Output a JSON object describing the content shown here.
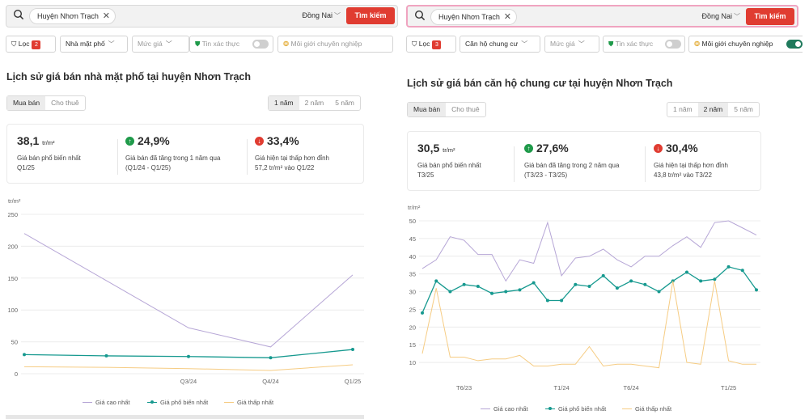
{
  "colors": {
    "accent": "#e03c31",
    "max": "#b6a6d6",
    "common": "#16998f",
    "min": "#f6cc83",
    "grid": "#ececec"
  },
  "left": {
    "search": {
      "chip": "Huyện Nhơn Trạch",
      "province": "Đồng Nai",
      "button": "Tìm kiếm"
    },
    "filters": {
      "loc": "Lọc",
      "loc_count": "2",
      "type": "Nhà mặt phố",
      "price": "Mức giá",
      "verified": "Tin xác thực",
      "broker": "Môi giới chuyên nghiệp"
    },
    "title": "Lịch sử giá bán nhà mặt phố tại huyện Nhơn Trạch",
    "tabs": [
      "Mua bán",
      "Cho thuê"
    ],
    "periods": [
      "1 năm",
      "2 năm",
      "5 năm"
    ],
    "active_period": 0,
    "stats": {
      "s1_value": "38,1",
      "unit": "tr/m²",
      "s1_desc": "Giá bán phổ biến nhất",
      "s1_sub": "Q1/25",
      "s2_value": "24,9%",
      "s2_desc": "Giá bán đã tăng trong 1 năm qua",
      "s2_sub": "(Q1/24 - Q1/25)",
      "s3_value": "33,4%",
      "s3_desc": "Giá hiện tại thấp hơn đỉnh",
      "s3_sub": "57,2 tr/m² vào Q1/22"
    },
    "legend": {
      "max": "Giá cao nhất",
      "common": "Giá phổ biến nhất",
      "min": "Giá thấp nhất"
    }
  },
  "right": {
    "search": {
      "chip": "Huyện Nhơn Trạch",
      "province": "Đồng Nai",
      "button": "Tìm kiếm"
    },
    "filters": {
      "loc": "Lọc",
      "loc_count": "3",
      "type": "Căn hộ chung cư",
      "price": "Mức giá",
      "verified": "Tin xác thực",
      "broker": "Môi giới chuyên nghiệp"
    },
    "title": "Lịch sử giá bán căn hộ chung cư tại huyện Nhơn Trạch",
    "tabs": [
      "Mua bán",
      "Cho thuê"
    ],
    "periods": [
      "1 năm",
      "2 năm",
      "5 năm"
    ],
    "active_period": 1,
    "stats": {
      "s1_value": "30,5",
      "unit": "tr/m²",
      "s1_desc": "Giá bán phổ biến nhất",
      "s1_sub": "T3/25",
      "s2_value": "27,6%",
      "s2_desc": "Giá bán đã tăng trong 2 năm qua",
      "s2_sub": "(T3/23 - T3/25)",
      "s3_value": "30,4%",
      "s3_desc": "Giá hiện tại thấp hơn đỉnh",
      "s3_sub": "43,8 tr/m² vào T3/22"
    },
    "legend": {
      "max": "Giá cao nhất",
      "common": "Giá phổ biến nhất",
      "min": "Giá thấp nhất"
    }
  },
  "chart_data": [
    {
      "type": "line",
      "ylabel": "tr/m²",
      "ylim": [
        0,
        250
      ],
      "yticks": [
        0,
        50,
        100,
        150,
        200,
        250
      ],
      "x": [
        "Q1/24",
        "Q2/24",
        "Q3/24",
        "Q4/24",
        "Q1/25"
      ],
      "x_tick_labels": [
        "",
        "",
        "Q3/24",
        "Q4/24",
        "Q1/25"
      ],
      "series": [
        {
          "name": "Giá cao nhất",
          "values": [
            220,
            146,
            72,
            42,
            155
          ]
        },
        {
          "name": "Giá phổ biến nhất",
          "values": [
            30,
            28,
            27,
            25,
            38
          ]
        },
        {
          "name": "Giá thấp nhất",
          "values": [
            11,
            10,
            8,
            5,
            14
          ]
        }
      ],
      "grid": true,
      "legend": "bottom"
    },
    {
      "type": "line",
      "ylabel": "tr/m²",
      "ylim": [
        5,
        50
      ],
      "yticks": [
        10,
        15,
        20,
        25,
        30,
        35,
        40,
        45,
        50
      ],
      "x": [
        "T3/23",
        "T4/23",
        "T5/23",
        "T6/23",
        "T7/23",
        "T8/23",
        "T9/23",
        "T10/23",
        "T11/23",
        "T12/23",
        "T1/24",
        "T2/24",
        "T3/24",
        "T4/24",
        "T5/24",
        "T6/24",
        "T7/24",
        "T8/24",
        "T9/24",
        "T10/24",
        "T11/24",
        "T12/24",
        "T1/25",
        "T2/25",
        "T3/25"
      ],
      "x_tick_labels": [
        "",
        "",
        "",
        "T6/23",
        "",
        "",
        "",
        "",
        "",
        "",
        "T1/24",
        "",
        "",
        "",
        "",
        "T6/24",
        "",
        "",
        "",
        "",
        "",
        "",
        "T1/25",
        "",
        ""
      ],
      "series": [
        {
          "name": "Giá cao nhất",
          "values": [
            36.5,
            39,
            45.5,
            44.5,
            40.5,
            40.5,
            33,
            39,
            38,
            49.5,
            34.5,
            39.5,
            40,
            42,
            39,
            37,
            40,
            40,
            43,
            45.5,
            42.5,
            49.5,
            50,
            48,
            46
          ]
        },
        {
          "name": "Giá phổ biến nhất",
          "values": [
            24,
            33,
            30,
            32,
            31.5,
            29.5,
            30,
            30.5,
            32.5,
            27.5,
            27.5,
            32,
            31.5,
            34.5,
            31,
            33,
            32,
            30,
            33,
            35.5,
            33,
            33.5,
            37,
            36,
            30.5
          ]
        },
        {
          "name": "Giá thấp nhất",
          "values": [
            12.5,
            31,
            11.5,
            11.5,
            10.5,
            11,
            11,
            12,
            9,
            9,
            9.5,
            9.5,
            14.5,
            9,
            9.5,
            9.5,
            9,
            8.5,
            33,
            10,
            9.5,
            33,
            10.5,
            9.5,
            9.5
          ]
        }
      ],
      "grid": true,
      "legend": "bottom"
    }
  ]
}
